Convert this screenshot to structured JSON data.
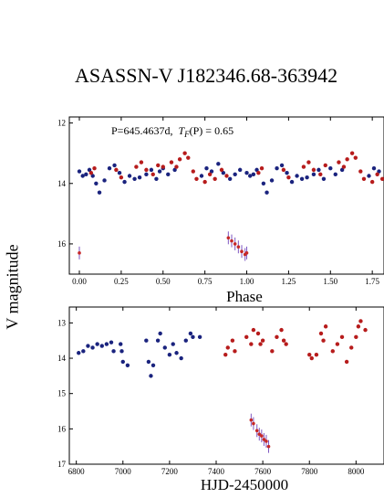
{
  "figure": {
    "title": "ASASSN-V J182346.68-363942",
    "ylabel": "V magnitude"
  },
  "colors": {
    "early": "#1a237e",
    "late": "#b71c1c",
    "errorbar": "#7e57c2",
    "axis": "#000000"
  },
  "chart_data": [
    {
      "type": "scatter",
      "panel": "phase-folded",
      "annotation_prefix": "P=645.4637d,",
      "annotation_math": "T_F(P) = 0.65",
      "annotation_symbol": "T",
      "annotation_sub": "F",
      "annotation_rest": "(P) = 0.65",
      "xlabel": "Phase",
      "ylabel": "V magnitude",
      "xlim": [
        -0.06,
        1.82
      ],
      "ylim": [
        17.0,
        11.8
      ],
      "y_inverted": true,
      "xticks": [
        "0.00",
        "0.25",
        "0.50",
        "0.75",
        "1.00",
        "1.25",
        "1.50",
        "1.75"
      ],
      "yticks": [
        "12",
        "14",
        "16"
      ],
      "series": [
        {
          "color_key": "early",
          "points": [
            [
              0.0,
              13.6
            ],
            [
              0.02,
              13.75
            ],
            [
              0.04,
              13.7
            ],
            [
              0.06,
              13.55
            ],
            [
              0.08,
              13.75
            ],
            [
              0.1,
              14.0
            ],
            [
              0.12,
              14.3
            ],
            [
              0.15,
              13.9
            ],
            [
              0.18,
              13.5
            ],
            [
              0.21,
              13.4
            ],
            [
              0.24,
              13.65
            ],
            [
              0.27,
              13.95
            ],
            [
              0.3,
              13.75
            ],
            [
              0.33,
              13.85
            ],
            [
              0.36,
              13.8
            ],
            [
              0.4,
              13.7
            ],
            [
              0.43,
              13.55
            ],
            [
              0.46,
              13.85
            ],
            [
              0.48,
              13.6
            ],
            [
              0.5,
              13.5
            ],
            [
              0.53,
              13.7
            ],
            [
              0.57,
              13.55
            ],
            [
              0.73,
              13.75
            ],
            [
              0.76,
              13.5
            ],
            [
              0.79,
              13.6
            ],
            [
              0.83,
              13.35
            ],
            [
              0.86,
              13.65
            ],
            [
              0.9,
              13.85
            ],
            [
              0.93,
              13.7
            ],
            [
              0.96,
              13.55
            ],
            [
              1.0,
              13.65
            ],
            [
              1.02,
              13.75
            ],
            [
              1.04,
              13.7
            ],
            [
              1.06,
              13.55
            ],
            [
              1.1,
              14.0
            ],
            [
              1.12,
              14.3
            ],
            [
              1.15,
              13.9
            ],
            [
              1.18,
              13.5
            ],
            [
              1.21,
              13.4
            ],
            [
              1.24,
              13.65
            ],
            [
              1.27,
              13.95
            ],
            [
              1.3,
              13.75
            ],
            [
              1.33,
              13.85
            ],
            [
              1.36,
              13.8
            ],
            [
              1.4,
              13.7
            ],
            [
              1.43,
              13.55
            ],
            [
              1.46,
              13.85
            ],
            [
              1.5,
              13.5
            ],
            [
              1.53,
              13.7
            ],
            [
              1.57,
              13.55
            ],
            [
              1.73,
              13.75
            ],
            [
              1.76,
              13.5
            ],
            [
              1.79,
              13.6
            ]
          ]
        },
        {
          "color_key": "late",
          "points": [
            [
              0.07,
              13.65
            ],
            [
              0.09,
              13.5
            ],
            [
              0.22,
              13.55
            ],
            [
              0.25,
              13.8
            ],
            [
              0.34,
              13.45
            ],
            [
              0.37,
              13.3
            ],
            [
              0.4,
              13.55
            ],
            [
              0.44,
              13.7
            ],
            [
              0.47,
              13.4
            ],
            [
              0.5,
              13.45
            ],
            [
              0.55,
              13.3
            ],
            [
              0.58,
              13.45
            ],
            [
              0.6,
              13.2
            ],
            [
              0.63,
              13.0
            ],
            [
              0.65,
              13.15
            ],
            [
              0.68,
              13.6
            ],
            [
              0.7,
              13.85
            ],
            [
              0.75,
              13.95
            ],
            [
              0.78,
              13.7
            ],
            [
              0.81,
              13.85
            ],
            [
              0.85,
              13.55
            ],
            [
              0.88,
              13.75
            ],
            [
              1.07,
              13.65
            ],
            [
              1.09,
              13.5
            ],
            [
              1.22,
              13.55
            ],
            [
              1.25,
              13.8
            ],
            [
              1.34,
              13.45
            ],
            [
              1.37,
              13.3
            ],
            [
              1.4,
              13.55
            ],
            [
              1.44,
              13.7
            ],
            [
              1.47,
              13.4
            ],
            [
              1.55,
              13.3
            ],
            [
              1.58,
              13.45
            ],
            [
              1.6,
              13.2
            ],
            [
              1.63,
              13.0
            ],
            [
              1.65,
              13.15
            ],
            [
              1.68,
              13.6
            ],
            [
              1.7,
              13.85
            ],
            [
              1.75,
              13.95
            ],
            [
              1.78,
              13.7
            ],
            [
              1.81,
              13.85
            ]
          ]
        },
        {
          "color_key": "errorbar",
          "points": [
            [
              0.0,
              16.3
            ],
            [
              0.89,
              15.8
            ],
            [
              0.91,
              15.9
            ],
            [
              0.93,
              16.0
            ],
            [
              0.95,
              16.1
            ],
            [
              0.97,
              16.25
            ],
            [
              0.99,
              16.35
            ],
            [
              1.0,
              16.3
            ]
          ]
        }
      ]
    },
    {
      "type": "scatter",
      "panel": "time-series",
      "xlabel": "HJD-2450000",
      "ylabel": "V magnitude",
      "xlim": [
        6770,
        8120
      ],
      "ylim": [
        17.0,
        12.55
      ],
      "y_inverted": true,
      "xticks": [
        "6800",
        "7000",
        "7200",
        "7400",
        "7600",
        "7800",
        "8000"
      ],
      "yticks": [
        "13",
        "14",
        "15",
        "16",
        "17"
      ],
      "series": [
        {
          "color_key": "early",
          "points": [
            [
              6810,
              13.85
            ],
            [
              6830,
              13.8
            ],
            [
              6850,
              13.65
            ],
            [
              6870,
              13.7
            ],
            [
              6890,
              13.6
            ],
            [
              6910,
              13.65
            ],
            [
              6930,
              13.6
            ],
            [
              6950,
              13.55
            ],
            [
              6960,
              13.8
            ],
            [
              6990,
              13.6
            ],
            [
              6995,
              13.8
            ],
            [
              7000,
              14.1
            ],
            [
              7020,
              14.2
            ],
            [
              7100,
              13.5
            ],
            [
              7110,
              14.1
            ],
            [
              7120,
              14.5
            ],
            [
              7130,
              14.2
            ],
            [
              7150,
              13.5
            ],
            [
              7160,
              13.3
            ],
            [
              7180,
              13.7
            ],
            [
              7200,
              13.9
            ],
            [
              7215,
              13.6
            ],
            [
              7230,
              13.85
            ],
            [
              7250,
              14.0
            ],
            [
              7270,
              13.5
            ],
            [
              7290,
              13.3
            ],
            [
              7300,
              13.4
            ],
            [
              7330,
              13.4
            ]
          ]
        },
        {
          "color_key": "late",
          "points": [
            [
              7440,
              13.9
            ],
            [
              7450,
              13.7
            ],
            [
              7470,
              13.5
            ],
            [
              7480,
              13.8
            ],
            [
              7530,
              13.4
            ],
            [
              7550,
              13.6
            ],
            [
              7560,
              13.2
            ],
            [
              7580,
              13.3
            ],
            [
              7590,
              13.6
            ],
            [
              7600,
              13.5
            ],
            [
              7640,
              13.8
            ],
            [
              7660,
              13.4
            ],
            [
              7680,
              13.2
            ],
            [
              7690,
              13.5
            ],
            [
              7700,
              13.6
            ],
            [
              7800,
              13.9
            ],
            [
              7810,
              14.0
            ],
            [
              7830,
              13.9
            ],
            [
              7850,
              13.3
            ],
            [
              7860,
              13.5
            ],
            [
              7870,
              13.1
            ],
            [
              7900,
              13.8
            ],
            [
              7920,
              13.6
            ],
            [
              7940,
              13.4
            ],
            [
              7960,
              14.1
            ],
            [
              7980,
              13.7
            ],
            [
              8000,
              13.4
            ],
            [
              8010,
              13.1
            ],
            [
              8020,
              12.95
            ],
            [
              8040,
              13.2
            ]
          ]
        },
        {
          "color_key": "errorbar",
          "points": [
            [
              7550,
              15.75
            ],
            [
              7560,
              15.85
            ],
            [
              7575,
              16.05
            ],
            [
              7585,
              16.15
            ],
            [
              7595,
              16.2
            ],
            [
              7605,
              16.3
            ],
            [
              7615,
              16.35
            ],
            [
              7625,
              16.5
            ]
          ]
        }
      ]
    }
  ]
}
